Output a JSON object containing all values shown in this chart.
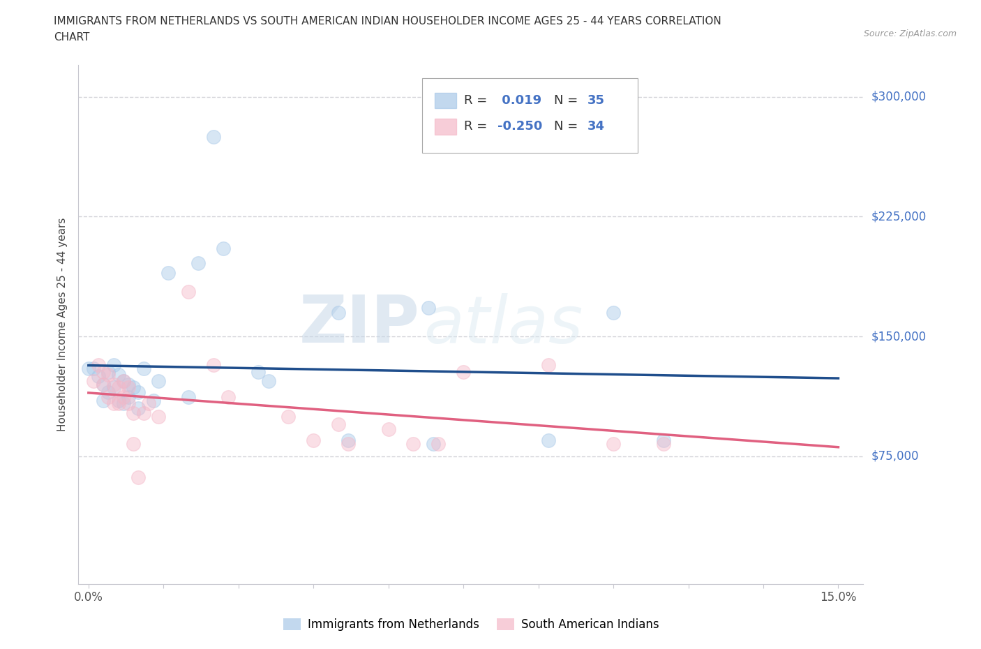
{
  "title_line1": "IMMIGRANTS FROM NETHERLANDS VS SOUTH AMERICAN INDIAN HOUSEHOLDER INCOME AGES 25 - 44 YEARS CORRELATION",
  "title_line2": "CHART",
  "source": "Source: ZipAtlas.com",
  "ylabel": "Householder Income Ages 25 - 44 years",
  "xlim": [
    -0.002,
    0.155
  ],
  "ylim": [
    -5000,
    320000
  ],
  "ytick_vals": [
    75000,
    150000,
    225000,
    300000
  ],
  "ytick_labels": [
    "$75,000",
    "$150,000",
    "$225,000",
    "$300,000"
  ],
  "xtick_vals": [
    0.0,
    0.015,
    0.03,
    0.045,
    0.06,
    0.075,
    0.09,
    0.105,
    0.12,
    0.135,
    0.15
  ],
  "blue_color": "#a8c8e8",
  "pink_color": "#f4b8c8",
  "blue_line_color": "#1f4e8c",
  "pink_line_color": "#e06080",
  "blue_R": 0.019,
  "blue_N": 35,
  "pink_R": -0.25,
  "pink_N": 34,
  "blue_x": [
    0.001,
    0.002,
    0.003,
    0.003,
    0.004,
    0.004,
    0.005,
    0.005,
    0.006,
    0.006,
    0.007,
    0.007,
    0.008,
    0.008,
    0.009,
    0.01,
    0.01,
    0.011,
    0.013,
    0.014,
    0.016,
    0.02,
    0.022,
    0.025,
    0.027,
    0.034,
    0.036,
    0.05,
    0.052,
    0.068,
    0.069,
    0.092,
    0.105,
    0.115,
    0.0
  ],
  "blue_y": [
    130000,
    125000,
    120000,
    110000,
    128000,
    115000,
    132000,
    118000,
    126000,
    110000,
    122000,
    108000,
    120000,
    112000,
    118000,
    115000,
    105000,
    130000,
    110000,
    122000,
    190000,
    112000,
    196000,
    275000,
    205000,
    128000,
    122000,
    165000,
    85000,
    168000,
    83000,
    85000,
    165000,
    85000,
    130000
  ],
  "pink_x": [
    0.001,
    0.002,
    0.003,
    0.003,
    0.004,
    0.004,
    0.005,
    0.005,
    0.006,
    0.006,
    0.007,
    0.007,
    0.008,
    0.008,
    0.009,
    0.009,
    0.01,
    0.011,
    0.012,
    0.014,
    0.02,
    0.025,
    0.028,
    0.04,
    0.045,
    0.05,
    0.052,
    0.06,
    0.065,
    0.07,
    0.075,
    0.092,
    0.105,
    0.115
  ],
  "pink_y": [
    122000,
    132000,
    128000,
    120000,
    126000,
    112000,
    120000,
    108000,
    118000,
    108000,
    122000,
    112000,
    118000,
    108000,
    83000,
    102000,
    62000,
    102000,
    108000,
    100000,
    178000,
    132000,
    112000,
    100000,
    85000,
    95000,
    83000,
    92000,
    83000,
    83000,
    128000,
    132000,
    83000,
    83000
  ],
  "watermark": "ZIPatlas",
  "background_color": "#ffffff",
  "grid_color": "#c8c8d0",
  "ytick_color": "#4472c4",
  "legend_label_blue": "Immigrants from Netherlands",
  "legend_label_pink": "South American Indians",
  "marker_size": 200,
  "marker_alpha": 0.45
}
